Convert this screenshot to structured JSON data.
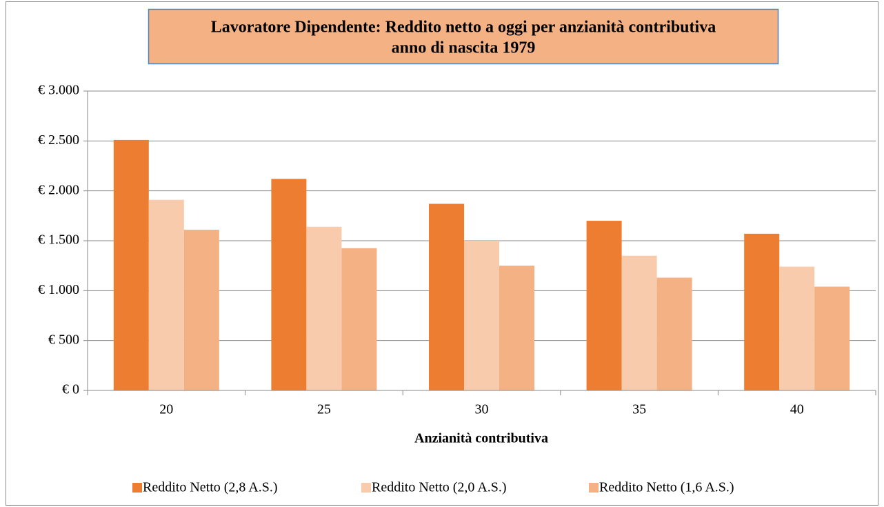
{
  "chart_data": {
    "type": "bar",
    "title": "Lavoratore Dipendente: Reddito netto a oggi per anzianità contributiva",
    "subtitle": "anno di nascita 1979",
    "x_label": "Anzianità contributiva",
    "categories": [
      "20",
      "25",
      "30",
      "35",
      "40"
    ],
    "series": [
      {
        "name": "Reddito Netto (2,8 A.S.)",
        "color": "#ed7d31",
        "values": [
          2510,
          2120,
          1870,
          1700,
          1570
        ]
      },
      {
        "name": "Reddito Netto (2,0 A.S.)",
        "color": "#f8cbad",
        "values": [
          1910,
          1640,
          1500,
          1350,
          1240
        ]
      },
      {
        "name": "Reddito Netto (1,6 A.S.)",
        "color": "#f4b183",
        "values": [
          1610,
          1425,
          1250,
          1130,
          1040
        ]
      }
    ],
    "ylim": [
      0,
      3000
    ],
    "yticks": [
      {
        "value": 0,
        "label": "€ 0"
      },
      {
        "value": 500,
        "label": "€ 500"
      },
      {
        "value": 1000,
        "label": "€ 1.000"
      },
      {
        "value": 1500,
        "label": "€ 1.500"
      },
      {
        "value": 2000,
        "label": "€ 2.000"
      },
      {
        "value": 2500,
        "label": "€ 2.500"
      },
      {
        "value": 3000,
        "label": "€ 3.000"
      }
    ],
    "grid": true,
    "legend": "bottom",
    "title_box_color": "#f4b183"
  }
}
